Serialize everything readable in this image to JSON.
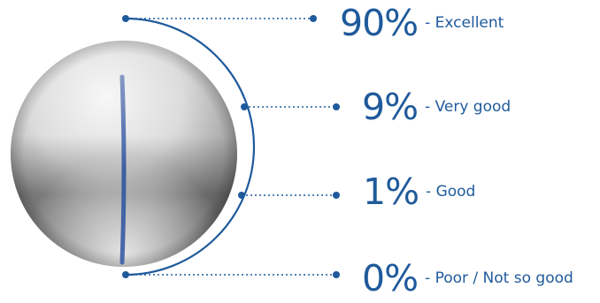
{
  "ratings": [
    {
      "percent": "90%",
      "label": "- Excellent"
    },
    {
      "percent": "9%",
      "label": "- Very good"
    },
    {
      "percent": "1%",
      "label": "- Good"
    },
    {
      "percent": "0%",
      "label": "- Poor / Not so good"
    }
  ],
  "colors": {
    "accent": "#1f5a9b",
    "sphere_light": "#f4f4f4",
    "sphere_dark": "#6d6d6d",
    "stripe": "#3d5fa5"
  },
  "icons": {
    "ball": "golf-ball-with-blue-line"
  }
}
